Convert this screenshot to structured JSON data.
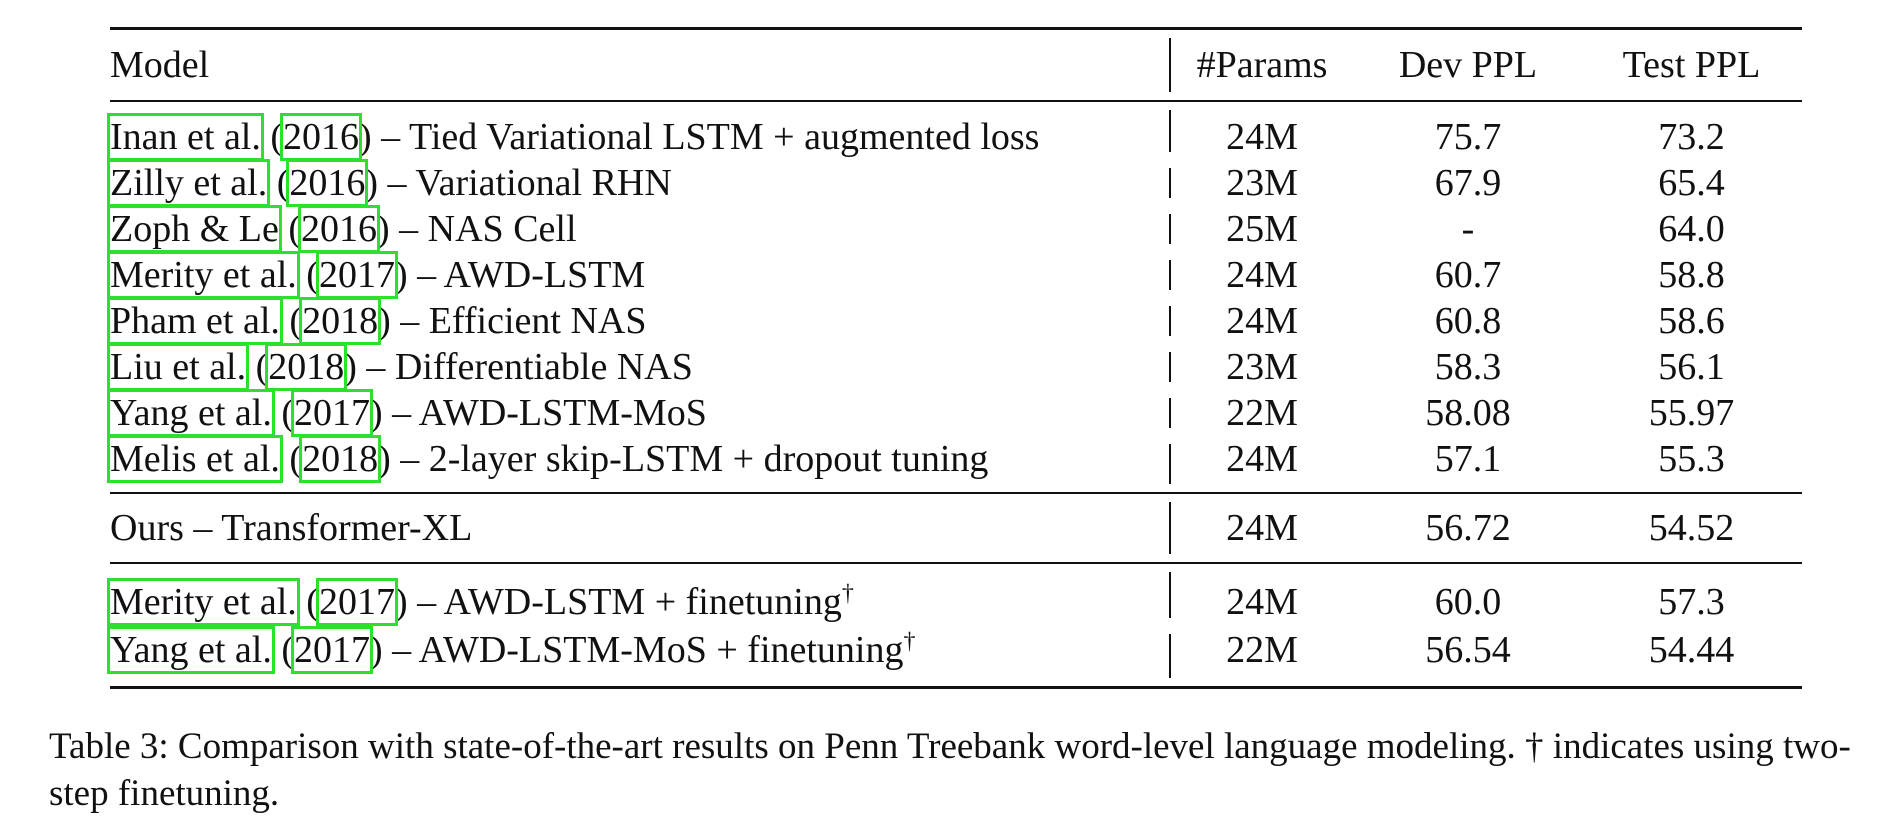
{
  "table": {
    "headers": {
      "model": "Model",
      "params": "#Params",
      "dev": "Dev PPL",
      "test": "Test PPL"
    },
    "baselines": [
      {
        "cite_author": "Inan et al.",
        "cite_year": "2016",
        "desc": ") – Tied Variational LSTM + augmented loss",
        "params": "24M",
        "dev": "75.7",
        "test": "73.2"
      },
      {
        "cite_author": "Zilly et al.",
        "cite_year": "2016",
        "desc": ") – Variational RHN",
        "params": "23M",
        "dev": "67.9",
        "test": "65.4"
      },
      {
        "cite_author": "Zoph & Le",
        "cite_year": "2016",
        "desc": ") – NAS Cell",
        "params": "25M",
        "dev": "-",
        "test": "64.0"
      },
      {
        "cite_author": "Merity et al.",
        "cite_year": "2017",
        "desc": ") – AWD-LSTM",
        "params": "24M",
        "dev": "60.7",
        "test": "58.8"
      },
      {
        "cite_author": "Pham et al.",
        "cite_year": "2018",
        "desc": ") – Efficient NAS",
        "params": "24M",
        "dev": "60.8",
        "test": "58.6"
      },
      {
        "cite_author": "Liu et al.",
        "cite_year": "2018",
        "desc": ") – Differentiable NAS",
        "params": "23M",
        "dev": "58.3",
        "test": "56.1"
      },
      {
        "cite_author": "Yang et al.",
        "cite_year": "2017",
        "desc": ") – AWD-LSTM-MoS",
        "params": "22M",
        "dev": "58.08",
        "test": "55.97"
      },
      {
        "cite_author": "Melis et al.",
        "cite_year": "2018",
        "desc": ") – 2-layer skip-LSTM + dropout tuning",
        "params": "24M",
        "dev": "57.1",
        "test": "55.3"
      }
    ],
    "ours": {
      "model": "Ours – Transformer-XL",
      "params": "24M",
      "dev": "56.72",
      "test": "54.52"
    },
    "finetuned": [
      {
        "cite_author": "Merity et al.",
        "cite_year": "2017",
        "desc": ") – AWD-LSTM + finetuning",
        "dagger": "†",
        "params": "24M",
        "dev": "60.0",
        "test": "57.3"
      },
      {
        "cite_author": "Yang et al.",
        "cite_year": "2017",
        "desc": ") – AWD-LSTM-MoS + finetuning",
        "dagger": "†",
        "params": "22M",
        "dev": "56.54",
        "test": "54.44"
      }
    ]
  },
  "caption": {
    "text": "Table 3: Comparison with state-of-the-art results on Penn Treebank word-level language modeling. † indicates using two-step finetuning."
  },
  "colors": {
    "citation_box": "#2ee02e",
    "text": "#111111",
    "background": "#ffffff"
  }
}
